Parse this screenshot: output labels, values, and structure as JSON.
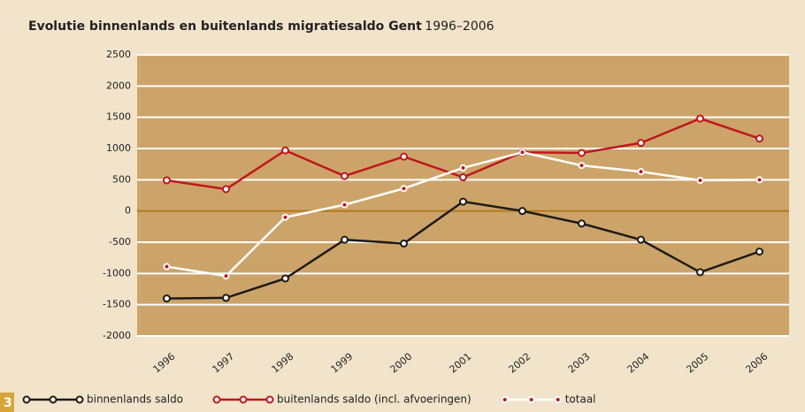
{
  "chart_data": {
    "type": "line",
    "title": "Evolutie binnenlands en buitenlands migratiesaldo Gent",
    "subtitle": "1996–2006",
    "figure_number": "3",
    "categories": [
      "1996",
      "1997",
      "1998",
      "1999",
      "2000",
      "2001",
      "2002",
      "2003",
      "2004",
      "2005",
      "2006"
    ],
    "series": [
      {
        "name": "binnenlands saldo",
        "color": "#1e1a16",
        "values": [
          -1400,
          -1390,
          -1080,
          -460,
          -520,
          150,
          0,
          -200,
          -460,
          -980,
          -650
        ]
      },
      {
        "name": "buitenlands saldo (incl. afvoeringen)",
        "color": "#c0161e",
        "values": [
          490,
          350,
          970,
          560,
          870,
          540,
          940,
          930,
          1090,
          1480,
          1160
        ]
      },
      {
        "name": "totaal",
        "color": "#ffffff",
        "values": [
          -890,
          -1040,
          -100,
          100,
          360,
          690,
          940,
          730,
          630,
          490,
          500
        ]
      }
    ],
    "ylim": [
      -2000,
      2500
    ],
    "yticks": [
      -2000,
      -1500,
      -1000,
      -500,
      0,
      500,
      1000,
      1500,
      2000,
      2500
    ],
    "grid": true,
    "plot_color": "#cca469"
  }
}
